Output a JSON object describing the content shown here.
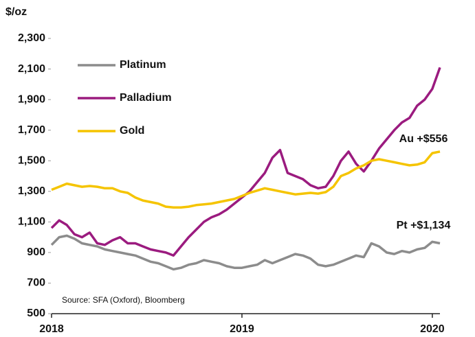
{
  "chart_data": {
    "type": "line",
    "y_axis_label": "$/oz",
    "x": [
      2018.0,
      2018.04,
      2018.08,
      2018.12,
      2018.16,
      2018.2,
      2018.24,
      2018.28,
      2018.32,
      2018.36,
      2018.4,
      2018.44,
      2018.48,
      2018.52,
      2018.56,
      2018.6,
      2018.64,
      2018.68,
      2018.72,
      2018.76,
      2018.8,
      2018.84,
      2018.88,
      2018.92,
      2018.96,
      2019.0,
      2019.04,
      2019.08,
      2019.12,
      2019.16,
      2019.2,
      2019.24,
      2019.28,
      2019.32,
      2019.36,
      2019.4,
      2019.44,
      2019.48,
      2019.52,
      2019.56,
      2019.6,
      2019.64,
      2019.68,
      2019.72,
      2019.76,
      2019.8,
      2019.84,
      2019.88,
      2019.92,
      2019.96,
      2020.0,
      2020.04
    ],
    "series": [
      {
        "name": "Platinum",
        "color": "#8c8c8c",
        "values": [
          950,
          1000,
          1010,
          990,
          960,
          950,
          940,
          920,
          910,
          900,
          890,
          880,
          860,
          840,
          830,
          810,
          790,
          800,
          820,
          830,
          850,
          840,
          830,
          810,
          800,
          800,
          810,
          820,
          850,
          830,
          850,
          870,
          890,
          880,
          860,
          820,
          810,
          820,
          840,
          860,
          880,
          870,
          960,
          940,
          900,
          890,
          910,
          900,
          920,
          930,
          970,
          960
        ]
      },
      {
        "name": "Palladium",
        "color": "#9b1b7f",
        "values": [
          1060,
          1110,
          1080,
          1020,
          1000,
          1030,
          960,
          950,
          980,
          1000,
          960,
          960,
          940,
          920,
          910,
          900,
          880,
          940,
          1000,
          1050,
          1100,
          1130,
          1150,
          1180,
          1220,
          1260,
          1300,
          1360,
          1420,
          1520,
          1570,
          1420,
          1400,
          1380,
          1340,
          1320,
          1330,
          1400,
          1500,
          1560,
          1480,
          1430,
          1500,
          1580,
          1640,
          1700,
          1750,
          1780,
          1860,
          1900,
          1970,
          2110
        ]
      },
      {
        "name": "Gold",
        "color": "#f5c400",
        "values": [
          1310,
          1330,
          1350,
          1340,
          1330,
          1335,
          1330,
          1320,
          1320,
          1300,
          1290,
          1260,
          1240,
          1230,
          1220,
          1200,
          1195,
          1195,
          1200,
          1210,
          1215,
          1220,
          1230,
          1240,
          1250,
          1270,
          1290,
          1305,
          1320,
          1310,
          1300,
          1290,
          1280,
          1285,
          1290,
          1285,
          1295,
          1330,
          1400,
          1420,
          1450,
          1470,
          1500,
          1510,
          1500,
          1490,
          1480,
          1470,
          1475,
          1490,
          1550,
          1560
        ]
      }
    ],
    "xlim": [
      2018,
      2020.04
    ],
    "xticks": [
      2018,
      2019,
      2020
    ],
    "ylim": [
      500,
      2300
    ],
    "yticks": [
      500,
      700,
      900,
      {
        "value": 1100,
        "label": "1,100"
      },
      {
        "value": 1300,
        "label": "1,300"
      },
      {
        "value": 1500,
        "label": "1,500"
      },
      {
        "value": 1700,
        "label": "1,700"
      },
      {
        "value": 1900,
        "label": "1,900"
      },
      {
        "value": 2100,
        "label": "2,100"
      },
      {
        "value": 2300,
        "label": "2,300"
      }
    ],
    "annotations": [
      "Au +$556",
      "Pt +$1,134"
    ],
    "source": "Source: SFA (Oxford), Bloomberg"
  }
}
